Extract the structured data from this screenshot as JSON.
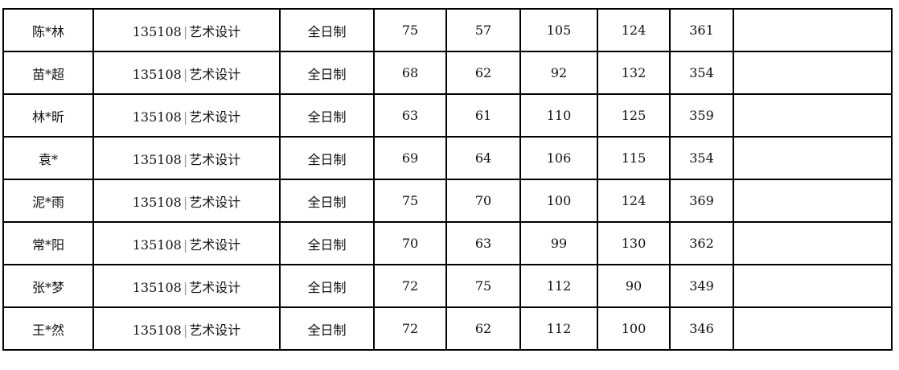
{
  "rows": [
    {
      "name": "陈*林",
      "code": "135108",
      "major": "艺术设计",
      "mode": "全日制",
      "s1": "75",
      "s2": "57",
      "s3": "105",
      "s4": "124",
      "total": "361",
      "note": ""
    },
    {
      "name": "苗*超",
      "code": "135108",
      "major": "艺术设计",
      "mode": "全日制",
      "s1": "68",
      "s2": "62",
      "s3": "92",
      "s4": "132",
      "total": "354",
      "note": ""
    },
    {
      "name": "林*昕",
      "code": "135108",
      "major": "艺术设计",
      "mode": "全日制",
      "s1": "63",
      "s2": "61",
      "s3": "110",
      "s4": "125",
      "total": "359",
      "note": ""
    },
    {
      "name": "袁*",
      "code": "135108",
      "major": "艺术设计",
      "mode": "全日制",
      "s1": "69",
      "s2": "64",
      "s3": "106",
      "s4": "115",
      "total": "354",
      "note": ""
    },
    {
      "name": "泥*雨",
      "code": "135108",
      "major": "艺术设计",
      "mode": "全日制",
      "s1": "75",
      "s2": "70",
      "s3": "100",
      "s4": "124",
      "total": "369",
      "note": ""
    },
    {
      "name": "常*阳",
      "code": "135108",
      "major": "艺术设计",
      "mode": "全日制",
      "s1": "70",
      "s2": "63",
      "s3": "99",
      "s4": "130",
      "total": "362",
      "note": ""
    },
    {
      "name": "张*梦",
      "code": "135108",
      "major": "艺术设计",
      "mode": "全日制",
      "s1": "72",
      "s2": "75",
      "s3": "112",
      "s4": "90",
      "total": "349",
      "note": ""
    },
    {
      "name": "王*然",
      "code": "135108",
      "major": "艺术设计",
      "mode": "全日制",
      "s1": "72",
      "s2": "62",
      "s3": "112",
      "s4": "100",
      "total": "346",
      "note": ""
    }
  ],
  "separator": "|"
}
